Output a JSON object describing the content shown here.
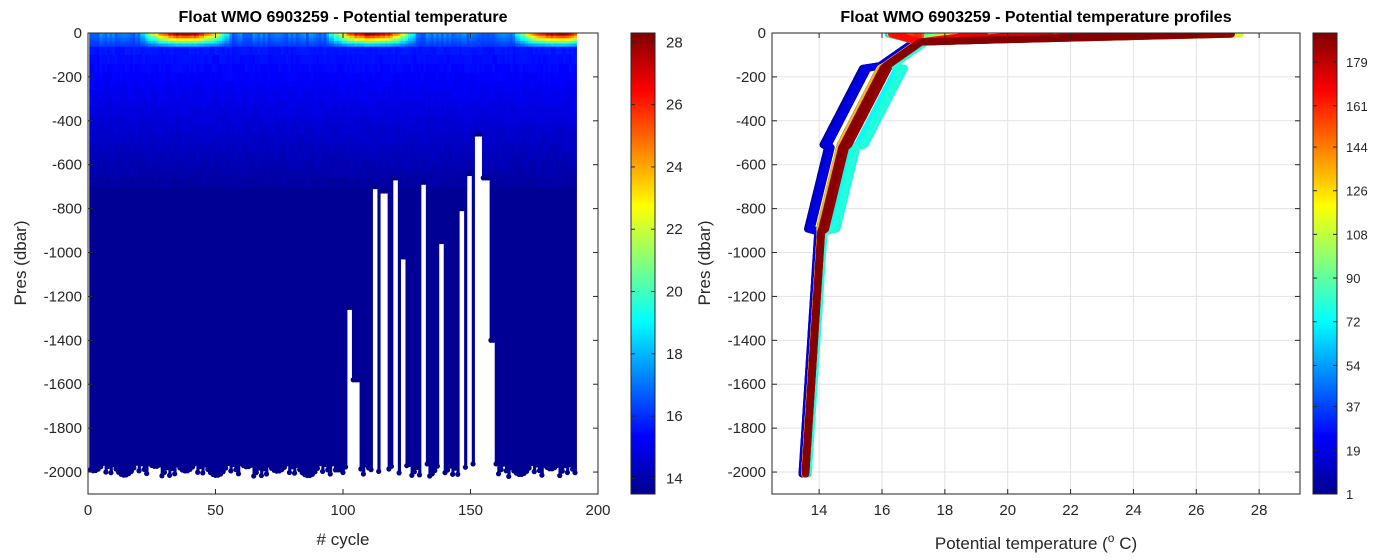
{
  "chart_data": [
    {
      "type": "heatmap",
      "title": "Float WMO 6903259 - Potential temperature",
      "xlabel": "# cycle",
      "ylabel": "Pres (dbar)",
      "xlim": [
        0,
        200
      ],
      "ylim": [
        -2100,
        0
      ],
      "x_ticks": [
        "0",
        "50",
        "100",
        "150",
        "200"
      ],
      "y_ticks": [
        "0",
        "-200",
        "-400",
        "-600",
        "-800",
        "-1000",
        "-1200",
        "-1400",
        "-1600",
        "-1800",
        "-2000"
      ],
      "colorbar": {
        "range": [
          13.5,
          28.3
        ],
        "ticks": [
          "14",
          "16",
          "18",
          "20",
          "22",
          "24",
          "26",
          "28"
        ],
        "colormap": "jet"
      },
      "cycles_range": [
        1,
        191
      ],
      "grid": false
    },
    {
      "type": "scatter",
      "title": "Float WMO 6903259 - Potential temperature profiles",
      "xlabel": "Potential temperature (",
      "xlabel_sup": "o",
      "xlabel_end": " C)",
      "ylabel": "Pres (dbar)",
      "xlim": [
        12.5,
        29.3
      ],
      "ylim": [
        -2100,
        0
      ],
      "x_ticks": [
        "14",
        "16",
        "18",
        "20",
        "22",
        "24",
        "26",
        "28"
      ],
      "y_ticks": [
        "0",
        "-200",
        "-400",
        "-600",
        "-800",
        "-1000",
        "-1200",
        "-1400",
        "-1600",
        "-1800",
        "-2000"
      ],
      "colorbar": {
        "range": [
          1,
          191
        ],
        "ticks": [
          "1",
          "19",
          "37",
          "54",
          "72",
          "90",
          "108",
          "126",
          "144",
          "161",
          "179"
        ],
        "colormap": "jet"
      },
      "grid": true
    }
  ]
}
